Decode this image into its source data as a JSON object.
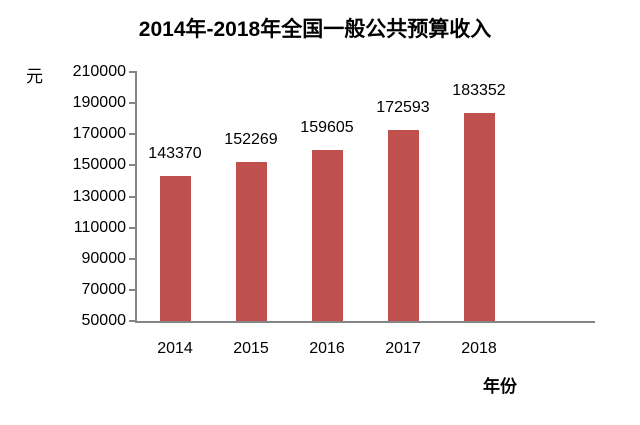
{
  "chart_data": {
    "type": "bar",
    "title": "2014年-2018年全国一般公共预算收入",
    "ylabel": "元",
    "xlabel": "年份",
    "categories": [
      "2014",
      "2015",
      "2016",
      "2017",
      "2018"
    ],
    "values": [
      143370,
      152269,
      159605,
      172593,
      183352
    ],
    "data_labels": [
      "143370",
      "152269",
      "159605",
      "172593",
      "183352"
    ],
    "ylim": [
      50000,
      210000
    ],
    "yticks": [
      210000,
      190000,
      170000,
      150000,
      130000,
      110000,
      90000,
      70000,
      50000
    ],
    "grid": false,
    "legend": false,
    "colors": {
      "bar": "#C0504D",
      "axis": "#858585",
      "text": "#000000",
      "background": "#FFFFFF"
    }
  }
}
